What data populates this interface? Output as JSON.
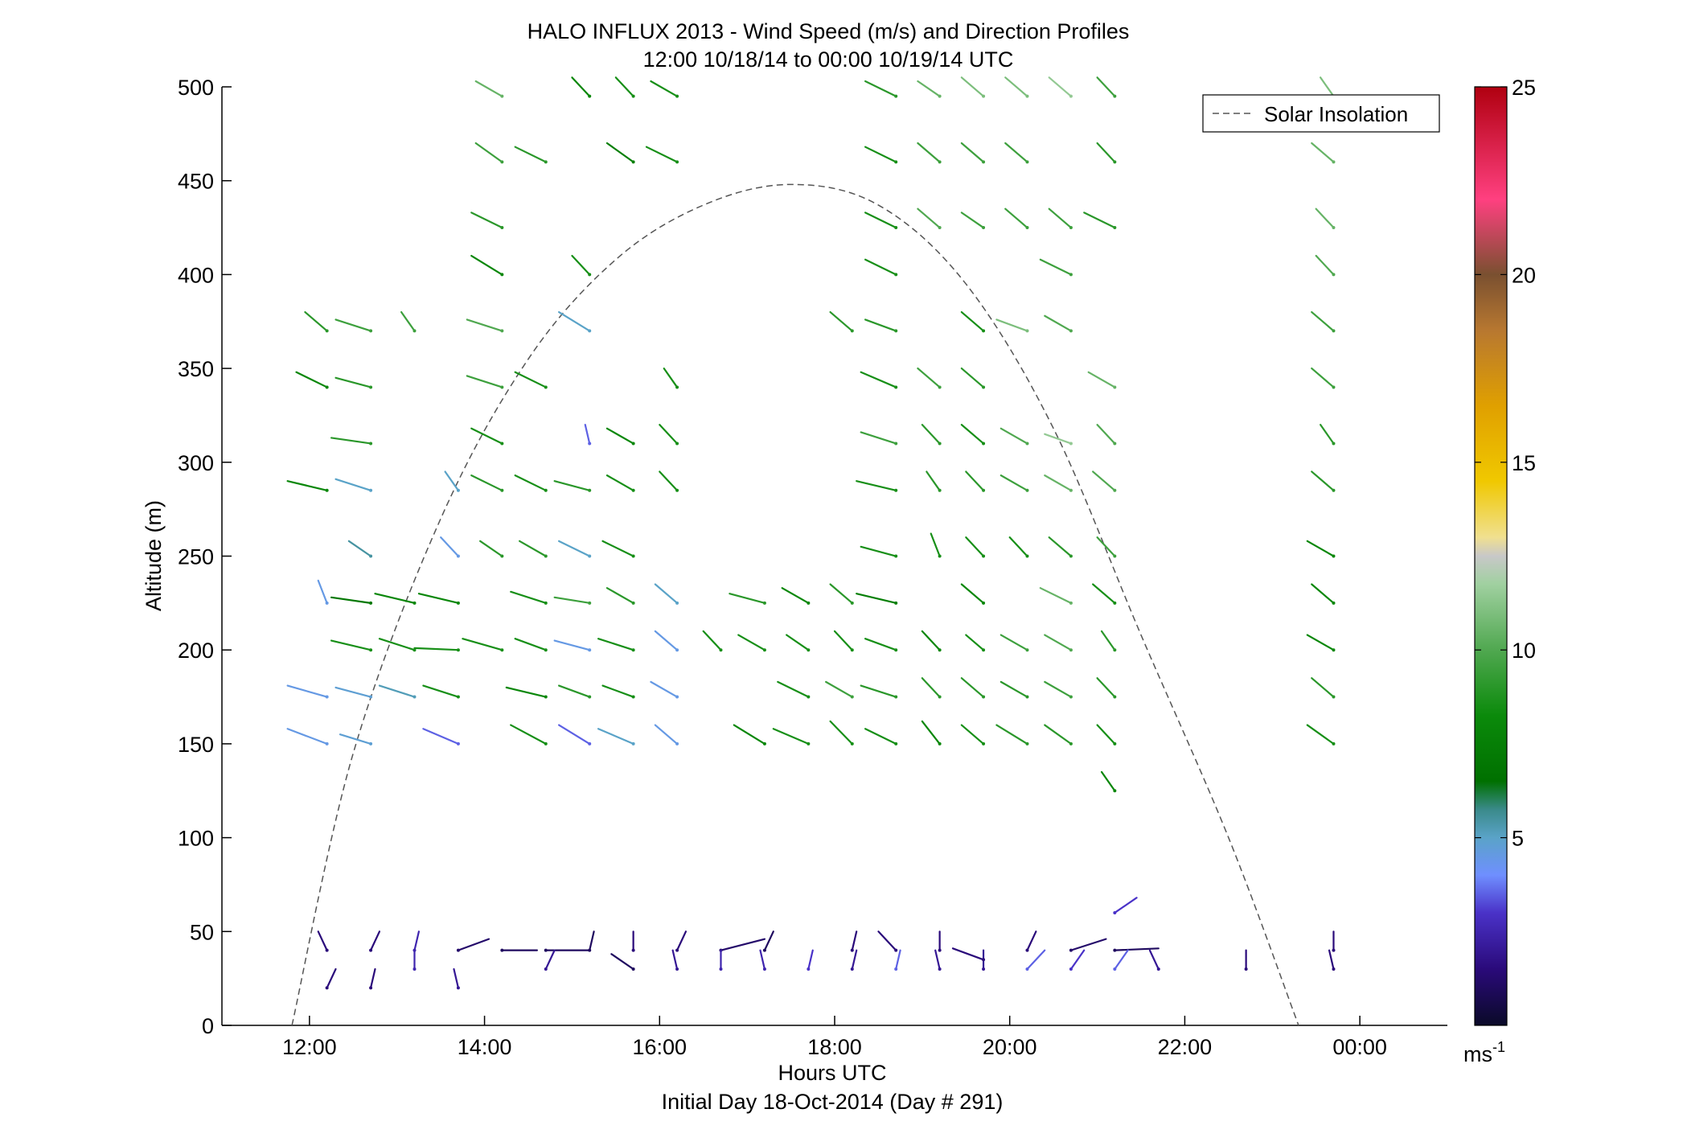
{
  "chart_data": {
    "type": "scatter",
    "title": "HALO INFLUX 2013 - Wind Speed (m/s) and Direction Profiles",
    "subtitle": "12:00 10/18/14 to 00:00 10/19/14  UTC",
    "xlabel": "Hours UTC",
    "xlabel_sub": "Initial Day 18-Oct-2014 (Day # 291)",
    "ylabel": "Altitude (m)",
    "xlim": [
      11,
      25
    ],
    "ylim": [
      0,
      500
    ],
    "x_ticks": [
      12,
      14,
      16,
      18,
      20,
      22,
      24
    ],
    "x_tick_labels": [
      "12:00",
      "14:00",
      "16:00",
      "18:00",
      "20:00",
      "22:00",
      "00:00"
    ],
    "y_ticks": [
      0,
      50,
      100,
      150,
      200,
      250,
      300,
      350,
      400,
      450,
      500
    ],
    "y_tick_labels": [
      "0",
      "50",
      "100",
      "150",
      "200",
      "250",
      "300",
      "350",
      "400",
      "450",
      "500"
    ],
    "grid": false,
    "legend": {
      "placement": "top-right",
      "entries": [
        "Solar Insolation"
      ]
    },
    "colorbar": {
      "range": [
        0,
        25
      ],
      "ticks": [
        5,
        10,
        15,
        20,
        25
      ],
      "tick_labels": [
        "5",
        "10",
        "15",
        "20",
        "25"
      ],
      "unit_label": "ms",
      "unit_exponent": "-1"
    },
    "solar_insolation": {
      "style": "dashed",
      "color": "#555555",
      "points": [
        [
          11.8,
          0
        ],
        [
          12.5,
          145
        ],
        [
          13.5,
          270
        ],
        [
          14.5,
          355
        ],
        [
          15.5,
          408
        ],
        [
          16.5,
          437
        ],
        [
          17.5,
          448
        ],
        [
          18.5,
          437
        ],
        [
          19.5,
          395
        ],
        [
          20.5,
          318
        ],
        [
          21.5,
          208
        ],
        [
          22.5,
          100
        ],
        [
          23.3,
          0
        ]
      ]
    },
    "series_note": "each barb: [time_h, altitude_m, wind_speed_ms, vector_dx_h, vector_dy_m] where vector points from base toward the dot",
    "barbs": [
      [
        12.2,
        150,
        4.5,
        -0.45,
        8
      ],
      [
        12.7,
        150,
        4.8,
        -0.35,
        5
      ],
      [
        13.7,
        150,
        3.5,
        -0.4,
        8
      ],
      [
        14.7,
        150,
        8.5,
        -0.4,
        10
      ],
      [
        15.2,
        150,
        3.5,
        -0.35,
        10
      ],
      [
        15.7,
        150,
        5.0,
        -0.4,
        8
      ],
      [
        16.2,
        150,
        4.5,
        -0.25,
        10
      ],
      [
        17.2,
        150,
        8.0,
        -0.35,
        10
      ],
      [
        17.7,
        150,
        8.5,
        -0.4,
        8
      ],
      [
        18.2,
        150,
        8.5,
        -0.25,
        12
      ],
      [
        18.7,
        150,
        8.5,
        -0.35,
        8
      ],
      [
        19.2,
        150,
        8.0,
        -0.2,
        12
      ],
      [
        19.7,
        150,
        8.5,
        -0.25,
        10
      ],
      [
        20.2,
        150,
        9.0,
        -0.35,
        10
      ],
      [
        20.7,
        150,
        9.0,
        -0.3,
        10
      ],
      [
        21.2,
        150,
        8.5,
        -0.2,
        10
      ],
      [
        21.2,
        125,
        8.0,
        -0.15,
        10
      ],
      [
        23.7,
        150,
        8.5,
        -0.3,
        10
      ],
      [
        12.2,
        175,
        4.5,
        -0.45,
        6
      ],
      [
        12.7,
        175,
        4.8,
        -0.4,
        5
      ],
      [
        13.2,
        175,
        5.2,
        -0.4,
        6
      ],
      [
        13.7,
        175,
        8.5,
        -0.4,
        6
      ],
      [
        14.7,
        175,
        8.0,
        -0.45,
        5
      ],
      [
        15.2,
        175,
        9.0,
        -0.35,
        6
      ],
      [
        15.7,
        175,
        8.5,
        -0.35,
        6
      ],
      [
        16.2,
        175,
        4.5,
        -0.3,
        8
      ],
      [
        17.7,
        175,
        8.5,
        -0.35,
        8
      ],
      [
        18.2,
        175,
        9.5,
        -0.3,
        8
      ],
      [
        18.7,
        175,
        9.0,
        -0.4,
        6
      ],
      [
        19.2,
        175,
        9.0,
        -0.2,
        10
      ],
      [
        19.7,
        175,
        9.0,
        -0.25,
        10
      ],
      [
        20.2,
        175,
        9.0,
        -0.3,
        8
      ],
      [
        20.7,
        175,
        9.5,
        -0.3,
        8
      ],
      [
        21.2,
        175,
        9.0,
        -0.2,
        10
      ],
      [
        23.7,
        175,
        9.0,
        -0.25,
        10
      ],
      [
        12.7,
        200,
        8.5,
        -0.45,
        5
      ],
      [
        13.2,
        200,
        8.5,
        -0.4,
        6
      ],
      [
        13.7,
        200,
        8.5,
        -0.5,
        1
      ],
      [
        14.2,
        200,
        8.5,
        -0.45,
        6
      ],
      [
        14.7,
        200,
        8.5,
        -0.35,
        6
      ],
      [
        15.2,
        200,
        4.5,
        -0.4,
        5
      ],
      [
        15.7,
        200,
        8.5,
        -0.4,
        6
      ],
      [
        16.2,
        200,
        4.5,
        -0.25,
        10
      ],
      [
        16.7,
        200,
        8.5,
        -0.2,
        10
      ],
      [
        17.2,
        200,
        8.5,
        -0.3,
        8
      ],
      [
        17.7,
        200,
        8.5,
        -0.25,
        8
      ],
      [
        18.2,
        200,
        8.5,
        -0.2,
        10
      ],
      [
        18.7,
        200,
        8.5,
        -0.35,
        6
      ],
      [
        19.2,
        200,
        8.0,
        -0.2,
        10
      ],
      [
        19.7,
        200,
        8.5,
        -0.2,
        8
      ],
      [
        20.2,
        200,
        9.5,
        -0.3,
        8
      ],
      [
        20.7,
        200,
        10.0,
        -0.3,
        8
      ],
      [
        21.2,
        200,
        9.0,
        -0.15,
        10
      ],
      [
        23.7,
        200,
        8.0,
        -0.3,
        8
      ],
      [
        12.2,
        225,
        4.5,
        -0.1,
        12
      ],
      [
        12.7,
        225,
        7.0,
        -0.45,
        3
      ],
      [
        13.2,
        225,
        8.0,
        -0.45,
        5
      ],
      [
        13.7,
        225,
        8.0,
        -0.45,
        5
      ],
      [
        14.7,
        225,
        8.5,
        -0.4,
        6
      ],
      [
        15.2,
        225,
        9.5,
        -0.4,
        3
      ],
      [
        15.7,
        225,
        9.0,
        -0.3,
        8
      ],
      [
        16.2,
        225,
        5.0,
        -0.25,
        10
      ],
      [
        17.2,
        225,
        9.0,
        -0.4,
        5
      ],
      [
        17.7,
        225,
        8.0,
        -0.3,
        8
      ],
      [
        18.2,
        225,
        9.0,
        -0.25,
        10
      ],
      [
        18.7,
        225,
        7.5,
        -0.45,
        5
      ],
      [
        19.7,
        225,
        8.0,
        -0.25,
        10
      ],
      [
        20.7,
        225,
        10.5,
        -0.35,
        8
      ],
      [
        21.2,
        225,
        8.5,
        -0.25,
        10
      ],
      [
        23.7,
        225,
        8.0,
        -0.25,
        10
      ],
      [
        12.7,
        250,
        5.5,
        -0.25,
        8
      ],
      [
        13.7,
        250,
        4.5,
        -0.2,
        10
      ],
      [
        14.2,
        250,
        9.0,
        -0.25,
        8
      ],
      [
        14.7,
        250,
        9.0,
        -0.3,
        8
      ],
      [
        15.2,
        250,
        5.0,
        -0.35,
        8
      ],
      [
        15.7,
        250,
        8.5,
        -0.35,
        8
      ],
      [
        18.7,
        250,
        8.5,
        -0.4,
        5
      ],
      [
        19.2,
        250,
        8.5,
        -0.1,
        12
      ],
      [
        19.7,
        250,
        8.5,
        -0.2,
        10
      ],
      [
        20.2,
        250,
        8.5,
        -0.2,
        10
      ],
      [
        20.7,
        250,
        9.0,
        -0.25,
        10
      ],
      [
        21.2,
        250,
        9.5,
        -0.2,
        10
      ],
      [
        23.7,
        250,
        8.0,
        -0.3,
        8
      ],
      [
        12.2,
        285,
        8.0,
        -0.45,
        5
      ],
      [
        12.7,
        285,
        5.0,
        -0.4,
        6
      ],
      [
        13.7,
        285,
        5.0,
        -0.15,
        10
      ],
      [
        14.2,
        285,
        9.0,
        -0.35,
        8
      ],
      [
        14.7,
        285,
        8.5,
        -0.35,
        8
      ],
      [
        15.2,
        285,
        9.0,
        -0.4,
        5
      ],
      [
        15.7,
        285,
        8.5,
        -0.3,
        8
      ],
      [
        16.2,
        285,
        8.5,
        -0.2,
        10
      ],
      [
        18.7,
        285,
        8.5,
        -0.45,
        5
      ],
      [
        19.2,
        285,
        9.0,
        -0.15,
        10
      ],
      [
        19.7,
        285,
        9.0,
        -0.2,
        10
      ],
      [
        20.2,
        285,
        9.5,
        -0.3,
        8
      ],
      [
        20.7,
        285,
        10.5,
        -0.3,
        8
      ],
      [
        21.2,
        285,
        10.0,
        -0.25,
        10
      ],
      [
        23.7,
        285,
        9.0,
        -0.25,
        10
      ],
      [
        12.7,
        310,
        9.0,
        -0.45,
        3
      ],
      [
        14.2,
        310,
        8.5,
        -0.35,
        8
      ],
      [
        15.2,
        310,
        3.5,
        -0.05,
        10
      ],
      [
        15.7,
        310,
        8.0,
        -0.3,
        8
      ],
      [
        16.2,
        310,
        8.5,
        -0.2,
        10
      ],
      [
        18.7,
        310,
        9.5,
        -0.4,
        6
      ],
      [
        19.2,
        310,
        9.0,
        -0.2,
        10
      ],
      [
        19.7,
        310,
        8.5,
        -0.25,
        10
      ],
      [
        20.2,
        310,
        10.0,
        -0.3,
        8
      ],
      [
        20.7,
        310,
        11.5,
        -0.3,
        5
      ],
      [
        21.2,
        310,
        10.0,
        -0.2,
        10
      ],
      [
        23.7,
        310,
        9.0,
        -0.15,
        10
      ],
      [
        12.2,
        340,
        8.0,
        -0.35,
        8
      ],
      [
        12.7,
        340,
        9.0,
        -0.4,
        5
      ],
      [
        14.2,
        340,
        9.5,
        -0.4,
        6
      ],
      [
        14.7,
        340,
        8.5,
        -0.35,
        8
      ],
      [
        16.2,
        340,
        8.5,
        -0.15,
        10
      ],
      [
        18.7,
        340,
        8.5,
        -0.4,
        8
      ],
      [
        19.2,
        340,
        9.5,
        -0.25,
        10
      ],
      [
        19.7,
        340,
        9.0,
        -0.25,
        10
      ],
      [
        21.2,
        340,
        10.5,
        -0.3,
        8
      ],
      [
        23.7,
        340,
        9.5,
        -0.25,
        10
      ],
      [
        12.2,
        370,
        9.0,
        -0.25,
        10
      ],
      [
        12.7,
        370,
        9.5,
        -0.4,
        6
      ],
      [
        13.2,
        370,
        9.5,
        -0.15,
        10
      ],
      [
        14.2,
        370,
        10.0,
        -0.4,
        6
      ],
      [
        15.2,
        370,
        5.0,
        -0.35,
        10
      ],
      [
        18.2,
        370,
        9.0,
        -0.25,
        10
      ],
      [
        18.7,
        370,
        9.0,
        -0.35,
        6
      ],
      [
        19.7,
        370,
        8.5,
        -0.25,
        10
      ],
      [
        20.2,
        370,
        11.0,
        -0.35,
        6
      ],
      [
        20.7,
        370,
        10.0,
        -0.3,
        8
      ],
      [
        23.7,
        370,
        9.5,
        -0.25,
        10
      ],
      [
        14.2,
        400,
        8.0,
        -0.35,
        10
      ],
      [
        15.2,
        400,
        8.5,
        -0.2,
        10
      ],
      [
        18.7,
        400,
        8.5,
        -0.35,
        8
      ],
      [
        20.7,
        400,
        9.5,
        -0.35,
        8
      ],
      [
        23.7,
        400,
        10.0,
        -0.2,
        10
      ],
      [
        14.2,
        425,
        9.0,
        -0.35,
        8
      ],
      [
        18.7,
        425,
        8.5,
        -0.35,
        8
      ],
      [
        19.2,
        425,
        10.0,
        -0.25,
        10
      ],
      [
        19.7,
        425,
        9.5,
        -0.25,
        8
      ],
      [
        20.2,
        425,
        9.5,
        -0.25,
        10
      ],
      [
        20.7,
        425,
        9.5,
        -0.25,
        10
      ],
      [
        21.2,
        425,
        9.0,
        -0.35,
        8
      ],
      [
        23.7,
        425,
        10.5,
        -0.2,
        10
      ],
      [
        14.2,
        460,
        9.5,
        -0.3,
        10
      ],
      [
        14.7,
        460,
        9.0,
        -0.35,
        8
      ],
      [
        15.7,
        460,
        7.5,
        -0.3,
        10
      ],
      [
        16.2,
        460,
        8.5,
        -0.35,
        8
      ],
      [
        18.7,
        460,
        8.5,
        -0.35,
        8
      ],
      [
        19.2,
        460,
        9.5,
        -0.25,
        10
      ],
      [
        19.7,
        460,
        9.5,
        -0.25,
        10
      ],
      [
        20.2,
        460,
        9.5,
        -0.25,
        10
      ],
      [
        21.2,
        460,
        9.0,
        -0.2,
        10
      ],
      [
        23.7,
        460,
        10.5,
        -0.25,
        10
      ],
      [
        14.2,
        495,
        10.5,
        -0.3,
        8
      ],
      [
        15.2,
        495,
        8.0,
        -0.2,
        10
      ],
      [
        15.7,
        495,
        8.5,
        -0.2,
        10
      ],
      [
        16.2,
        495,
        8.5,
        -0.3,
        8
      ],
      [
        18.7,
        495,
        9.0,
        -0.35,
        8
      ],
      [
        19.2,
        495,
        10.5,
        -0.25,
        8
      ],
      [
        19.7,
        495,
        11.0,
        -0.25,
        10
      ],
      [
        20.2,
        495,
        11.0,
        -0.25,
        10
      ],
      [
        20.7,
        495,
        11.5,
        -0.25,
        10
      ],
      [
        21.2,
        495,
        9.5,
        -0.2,
        10
      ],
      [
        23.7,
        495,
        11.0,
        -0.15,
        10
      ],
      [
        12.2,
        40,
        1.5,
        -0.1,
        10
      ],
      [
        12.7,
        40,
        1.5,
        0.1,
        10
      ],
      [
        13.2,
        40,
        2.5,
        0.05,
        10
      ],
      [
        13.7,
        40,
        1.2,
        0.35,
        6
      ],
      [
        14.2,
        40,
        1.0,
        0.4,
        0
      ],
      [
        14.7,
        40,
        1.0,
        0.5,
        0
      ],
      [
        15.2,
        40,
        1.0,
        0.05,
        10
      ],
      [
        15.7,
        40,
        1.5,
        0.0,
        10
      ],
      [
        16.2,
        40,
        1.5,
        0.1,
        10
      ],
      [
        16.7,
        40,
        1.2,
        0.5,
        6
      ],
      [
        17.2,
        40,
        1.0,
        0.1,
        10
      ],
      [
        18.2,
        40,
        1.5,
        0.05,
        10
      ],
      [
        18.7,
        40,
        1.5,
        -0.2,
        10
      ],
      [
        19.2,
        40,
        1.5,
        0.0,
        10
      ],
      [
        20.2,
        40,
        1.5,
        0.1,
        10
      ],
      [
        20.7,
        40,
        1.2,
        0.4,
        6
      ],
      [
        21.2,
        40,
        1.0,
        0.5,
        1
      ],
      [
        21.2,
        60,
        3.0,
        0.25,
        8
      ],
      [
        23.7,
        40,
        1.5,
        0.0,
        10
      ],
      [
        12.2,
        20,
        1.5,
        0.1,
        10
      ],
      [
        12.7,
        20,
        1.5,
        0.05,
        10
      ],
      [
        13.2,
        30,
        2.5,
        0.0,
        10
      ],
      [
        13.7,
        20,
        2.0,
        -0.05,
        10
      ],
      [
        14.7,
        30,
        2.0,
        0.1,
        10
      ],
      [
        15.7,
        30,
        1.0,
        -0.25,
        8
      ],
      [
        16.2,
        30,
        2.0,
        -0.05,
        10
      ],
      [
        16.7,
        30,
        2.5,
        0.0,
        10
      ],
      [
        17.2,
        30,
        2.5,
        -0.05,
        10
      ],
      [
        17.7,
        30,
        3.0,
        0.05,
        10
      ],
      [
        18.2,
        30,
        2.0,
        0.05,
        10
      ],
      [
        18.7,
        30,
        3.5,
        0.05,
        10
      ],
      [
        19.2,
        30,
        2.0,
        -0.05,
        10
      ],
      [
        19.7,
        30,
        2.0,
        0.0,
        10
      ],
      [
        20.2,
        30,
        3.5,
        0.2,
        10
      ],
      [
        20.7,
        30,
        3.0,
        0.15,
        10
      ],
      [
        21.2,
        30,
        3.5,
        0.15,
        10
      ],
      [
        21.7,
        30,
        2.0,
        -0.1,
        10
      ],
      [
        22.7,
        30,
        1.5,
        0.0,
        10
      ],
      [
        23.7,
        30,
        1.5,
        -0.05,
        10
      ],
      [
        19.7,
        35,
        1.5,
        -0.35,
        6
      ]
    ]
  }
}
